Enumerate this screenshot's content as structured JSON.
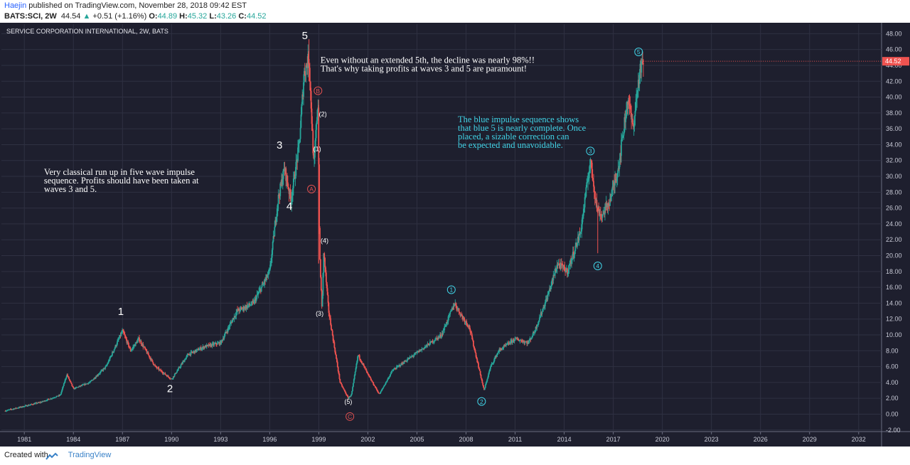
{
  "header": {
    "author": "Haejin",
    "published_text": "published on TradingView.com, November 28, 2018 09:42 EST",
    "symbol": "BATS:SCI, 2W",
    "last": "44.54",
    "change": "+0.51 (+1.16%)",
    "open_label": "O:",
    "open": "44.89",
    "high_label": "H:",
    "high": "45.32",
    "low_label": "L:",
    "low": "43.26",
    "close_label": "C:",
    "close": "44.52"
  },
  "footer": {
    "created_with": "Created with",
    "brand": "TradingView"
  },
  "colors": {
    "background": "#1e1f2e",
    "grid": "#2f3142",
    "up": "#26a69a",
    "down": "#ef5350",
    "white_label": "#ffffff",
    "red_label": "#e05050",
    "cyan_label": "#40d3e6",
    "price_tag": "#ef5350"
  },
  "chart_data": {
    "type": "candlestick",
    "title": "SERVICE CORPORATION INTERNATIONAL, 2W, BATS",
    "x_unit": "year",
    "xlim": [
      1979.6,
      2033.4
    ],
    "ylim": [
      -2.2,
      49.2
    ],
    "x_ticks": [
      "1981",
      "1984",
      "1987",
      "1990",
      "1993",
      "1996",
      "1999",
      "2002",
      "2005",
      "2008",
      "2011",
      "2014",
      "2017",
      "2020",
      "2023",
      "2026",
      "2029",
      "2032"
    ],
    "y_ticks": [
      "48.00",
      "46.00",
      "44.00",
      "42.00",
      "40.00",
      "38.00",
      "36.00",
      "34.00",
      "32.00",
      "30.00",
      "28.00",
      "26.00",
      "24.00",
      "22.00",
      "20.00",
      "18.00",
      "16.00",
      "14.00",
      "12.00",
      "10.00",
      "8.00",
      "6.00",
      "4.00",
      "2.00",
      "0.00",
      "-2.00"
    ],
    "last_price_label": "44.52",
    "last_price": 44.52,
    "price_path": [
      [
        1979.8,
        0.4
      ],
      [
        1981.0,
        1.0
      ],
      [
        1982.0,
        1.5
      ],
      [
        1983.2,
        2.4
      ],
      [
        1983.6,
        5.0
      ],
      [
        1984.0,
        3.2
      ],
      [
        1985.0,
        4.0
      ],
      [
        1986.0,
        6.0
      ],
      [
        1987.0,
        10.5
      ],
      [
        1987.5,
        8.0
      ],
      [
        1988.0,
        9.5
      ],
      [
        1989.0,
        6.0
      ],
      [
        1990.0,
        4.4
      ],
      [
        1991.0,
        7.5
      ],
      [
        1992.0,
        8.5
      ],
      [
        1993.0,
        9.0
      ],
      [
        1994.0,
        13.0
      ],
      [
        1995.0,
        14.0
      ],
      [
        1996.0,
        18.0
      ],
      [
        1996.5,
        27.0
      ],
      [
        1996.9,
        31.0
      ],
      [
        1997.3,
        27.0
      ],
      [
        1997.8,
        34.0
      ],
      [
        1998.1,
        43.0
      ],
      [
        1998.4,
        45.0
      ],
      [
        1998.7,
        31.0
      ],
      [
        1998.95,
        40.0
      ],
      [
        1999.05,
        20.0
      ],
      [
        1999.2,
        13.0
      ],
      [
        1999.3,
        20.5
      ],
      [
        1999.6,
        13.0
      ],
      [
        2000.3,
        4.0
      ],
      [
        2000.8,
        2.0
      ],
      [
        2001.0,
        2.5
      ],
      [
        2001.4,
        7.5
      ],
      [
        2002.0,
        5.0
      ],
      [
        2002.7,
        2.5
      ],
      [
        2003.5,
        5.5
      ],
      [
        2004.5,
        7.0
      ],
      [
        2005.5,
        8.5
      ],
      [
        2006.5,
        10.0
      ],
      [
        2007.3,
        14.0
      ],
      [
        2007.7,
        12.5
      ],
      [
        2008.2,
        11.0
      ],
      [
        2009.1,
        3.0
      ],
      [
        2009.5,
        6.0
      ],
      [
        2010.0,
        8.0
      ],
      [
        2011.0,
        9.5
      ],
      [
        2011.8,
        9.0
      ],
      [
        2012.2,
        10.5
      ],
      [
        2013.0,
        15.0
      ],
      [
        2013.6,
        19.0
      ],
      [
        2014.2,
        18.0
      ],
      [
        2015.0,
        23.0
      ],
      [
        2015.6,
        32.0
      ],
      [
        2016.0,
        26.0
      ],
      [
        2016.3,
        25.0
      ],
      [
        2016.8,
        27.0
      ],
      [
        2017.3,
        31.0
      ],
      [
        2017.9,
        40.0
      ],
      [
        2018.2,
        36.0
      ],
      [
        2018.6,
        43.0
      ],
      [
        2018.85,
        44.5
      ]
    ],
    "wave_labels_white": [
      {
        "text": "1",
        "x": 1986.9,
        "y": 12.5
      },
      {
        "text": "2",
        "x": 1989.9,
        "y": 2.8
      },
      {
        "text": "3",
        "x": 1996.6,
        "y": 33.5
      },
      {
        "text": "4",
        "x": 1997.2,
        "y": 25.8
      },
      {
        "text": "5",
        "x": 1998.15,
        "y": 47.3
      }
    ],
    "wave_labels_minor": [
      {
        "text": "(2)",
        "x": 1999.25,
        "y": 37.6
      },
      {
        "text": "(1)",
        "x": 1998.9,
        "y": 33.2
      },
      {
        "text": "(4)",
        "x": 1999.35,
        "y": 21.6
      },
      {
        "text": "(3)",
        "x": 1999.05,
        "y": 12.4
      },
      {
        "text": "(5)",
        "x": 2000.8,
        "y": 1.3
      }
    ],
    "wave_labels_red": [
      {
        "text": "B",
        "x": 1998.95,
        "y": 40.8
      },
      {
        "text": "A",
        "x": 1998.55,
        "y": 28.4
      },
      {
        "text": "C",
        "x": 2000.9,
        "y": -0.3
      }
    ],
    "wave_labels_cyan": [
      {
        "text": "1",
        "x": 2007.1,
        "y": 15.7
      },
      {
        "text": "2",
        "x": 2008.95,
        "y": 1.6
      },
      {
        "text": "3",
        "x": 2015.6,
        "y": 33.2
      },
      {
        "text": "4",
        "x": 2016.05,
        "y": 18.7
      },
      {
        "text": "5",
        "x": 2018.55,
        "y": 45.7
      }
    ],
    "annotations": [
      {
        "key": "anno1",
        "lines": [
          "Very classical run up in five wave impulse",
          "sequence. Profits should have been taken at",
          "waves 3 and 5."
        ],
        "x": 1982.2,
        "y": 30.2,
        "color": "white"
      },
      {
        "key": "anno2",
        "lines": [
          "Even without an extended 5th, the decline was nearly 98%!!",
          "That's why taking profits at waves 3 and 5 are paramount!"
        ],
        "x": 1999.1,
        "y": 44.3,
        "color": "white"
      },
      {
        "key": "anno3",
        "lines": [
          "The blue impulse sequence shows",
          "that blue 5 is nearly complete. Once",
          "placed, a sizable correction can",
          "be expected and unavoidable."
        ],
        "x": 2007.5,
        "y": 36.8,
        "color": "cyan"
      }
    ]
  }
}
